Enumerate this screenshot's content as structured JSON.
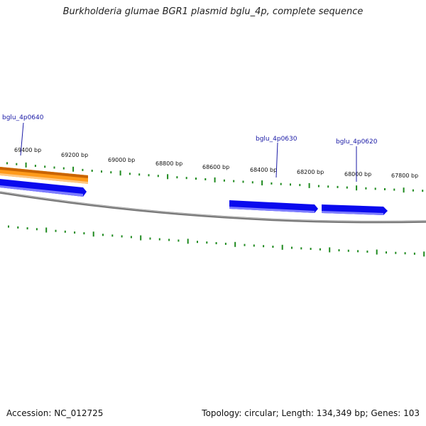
{
  "title": "Burkholderia glumae BGR1 plasmid bglu_4p, complete sequence",
  "footer": {
    "accession": "Accession: NC_012725",
    "summary": "Topology: circular; Length: 134,349 bp; Genes: 103"
  },
  "map": {
    "tick_labels": [
      "69400 bp",
      "69200 bp",
      "69000 bp",
      "68800 bp",
      "68600 bp",
      "68400 bp",
      "68200 bp",
      "68000 bp",
      "67800 bp"
    ],
    "genes": [
      {
        "name": "bglu_4p0640",
        "labeled": true
      },
      {
        "name": "bglu_4p0630",
        "labeled": true
      },
      {
        "name": "bglu_4p0620",
        "labeled": true
      }
    ],
    "colors": {
      "backbone": "#808080",
      "ticks": "#1f8a1f",
      "forward_gene": "#ff9a1a",
      "reverse_gene": "#0a0aee",
      "label_text": "#1a1aa6"
    }
  }
}
